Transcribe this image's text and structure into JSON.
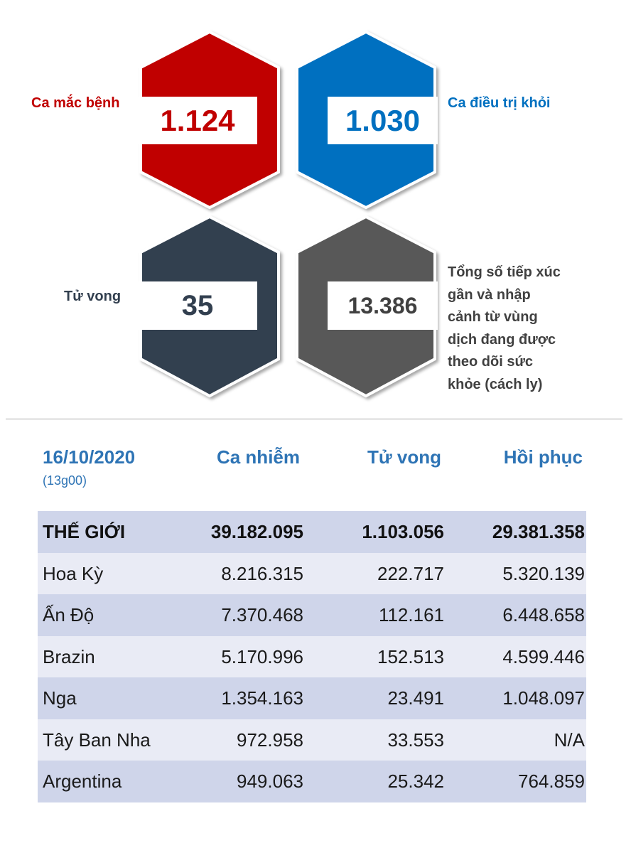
{
  "stats": [
    {
      "label": "Ca mắc bệnh",
      "value": "1.124",
      "color": "#c00000"
    },
    {
      "label": "Ca điều trị khỏi",
      "value": "1.030",
      "color": "#0070c0"
    },
    {
      "label": "Tử vong",
      "value": "35",
      "color": "#323f4f"
    },
    {
      "label_lines": [
        "Tổng số tiếp xúc",
        "gần và nhập",
        "cảnh từ vùng",
        "dịch đang được",
        "theo dõi sức",
        "khỏe (cách ly)"
      ],
      "value": "13.386",
      "color": "#595959"
    }
  ],
  "table": {
    "date": "16/10/2020",
    "time": "(13g00)",
    "headers": [
      "Ca nhiễm",
      "Tử vong",
      "Hồi phục"
    ],
    "rows": [
      {
        "name": "THẾ GIỚI",
        "cases": "39.182.095",
        "deaths": "1.103.056",
        "recovered": "29.381.358"
      },
      {
        "name": "Hoa Kỳ",
        "cases": "8.216.315",
        "deaths": "222.717",
        "recovered": "5.320.139"
      },
      {
        "name": "Ấn Độ",
        "cases": "7.370.468",
        "deaths": "112.161",
        "recovered": "6.448.658"
      },
      {
        "name": "Brazin",
        "cases": "5.170.996",
        "deaths": "152.513",
        "recovered": "4.599.446"
      },
      {
        "name": "Nga",
        "cases": "1.354.163",
        "deaths": "23.491",
        "recovered": "1.048.097"
      },
      {
        "name": "Tây Ban Nha",
        "cases": "972.958",
        "deaths": "33.553",
        "recovered": "N/A"
      },
      {
        "name": "Argentina",
        "cases": "949.063",
        "deaths": "25.342",
        "recovered": "764.859"
      }
    ]
  }
}
